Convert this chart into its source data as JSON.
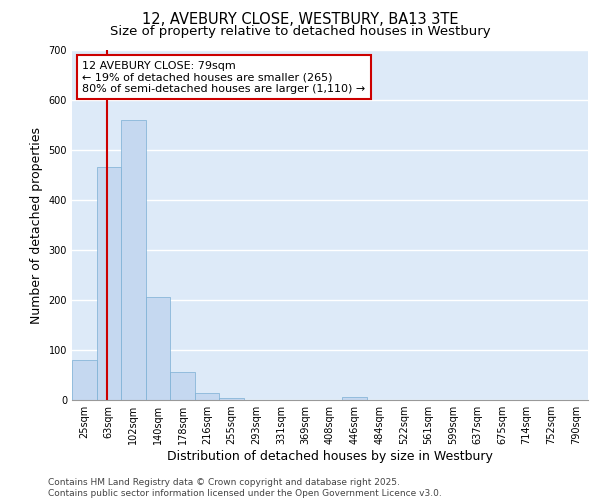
{
  "title1": "12, AVEBURY CLOSE, WESTBURY, BA13 3TE",
  "title2": "Size of property relative to detached houses in Westbury",
  "xlabel": "Distribution of detached houses by size in Westbury",
  "ylabel": "Number of detached properties",
  "bins": [
    "25sqm",
    "63sqm",
    "102sqm",
    "140sqm",
    "178sqm",
    "216sqm",
    "255sqm",
    "293sqm",
    "331sqm",
    "369sqm",
    "408sqm",
    "446sqm",
    "484sqm",
    "522sqm",
    "561sqm",
    "599sqm",
    "637sqm",
    "675sqm",
    "714sqm",
    "752sqm",
    "790sqm"
  ],
  "values": [
    80,
    467,
    560,
    207,
    57,
    15,
    5,
    0,
    0,
    0,
    0,
    6,
    0,
    0,
    0,
    0,
    0,
    0,
    0,
    0,
    0
  ],
  "bar_color": "#c5d8f0",
  "bar_edge_color": "#7aafd4",
  "vline_color": "#cc0000",
  "annotation_text": "12 AVEBURY CLOSE: 79sqm\n← 19% of detached houses are smaller (265)\n80% of semi-detached houses are larger (1,110) →",
  "annotation_box_color": "#cc0000",
  "annotation_bg": "#ffffff",
  "ylim": [
    0,
    700
  ],
  "yticks": [
    0,
    100,
    200,
    300,
    400,
    500,
    600,
    700
  ],
  "bg_color": "#ddeaf8",
  "fig_bg": "#ffffff",
  "grid_color": "#ffffff",
  "footnote": "Contains HM Land Registry data © Crown copyright and database right 2025.\nContains public sector information licensed under the Open Government Licence v3.0.",
  "title_fontsize": 10.5,
  "subtitle_fontsize": 9.5,
  "axis_label_fontsize": 9,
  "tick_fontsize": 7,
  "annotation_fontsize": 8,
  "footnote_fontsize": 6.5
}
